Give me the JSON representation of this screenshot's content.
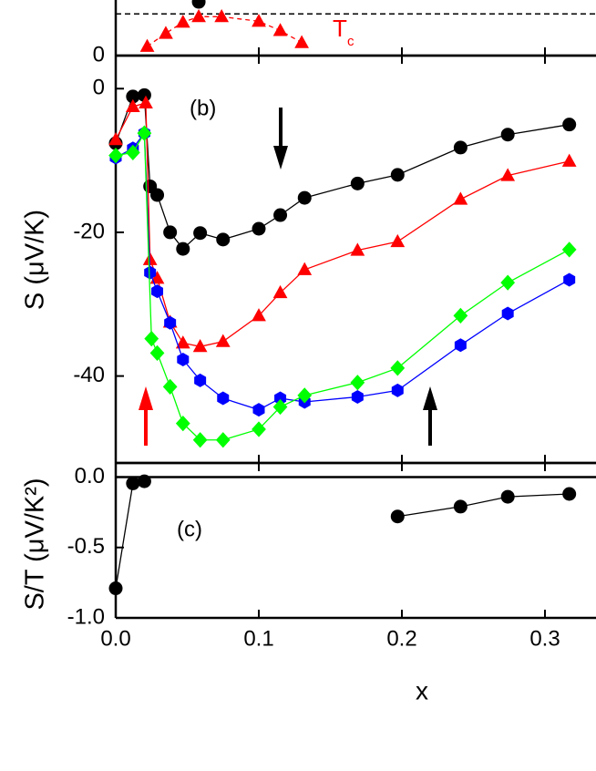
{
  "chart_data": [
    {
      "type": "line",
      "annotation": "T",
      "annotation_sub": "c",
      "xlim": [
        0,
        0.3357
      ],
      "ylim": [
        0,
        6
      ],
      "yticks": [
        0
      ],
      "reference_line": 4.5,
      "series": [
        {
          "color": "#ff0000",
          "marker": "triangle",
          "dashed": true,
          "x": [
            0.022,
            0.035,
            0.047,
            0.058,
            0.074,
            0.1,
            0.115,
            0.13
          ],
          "values": [
            1.0,
            2.4,
            3.6,
            4.2,
            4.2,
            3.7,
            2.7,
            1.4
          ]
        },
        {
          "color": "#000000",
          "marker": "circle",
          "x": [
            0.058
          ],
          "values": [
            5.8
          ]
        }
      ]
    },
    {
      "type": "line",
      "annotation": "(b)",
      "ylabel": "S (μV/K)",
      "xlim": [
        0,
        0.3357
      ],
      "ylim": [
        -52.1,
        4.6
      ],
      "yticks": [
        0,
        -20,
        -40
      ],
      "series": [
        {
          "color": "#000000",
          "marker": "circle",
          "x": [
            0,
            0.012,
            0.02,
            0.024,
            0.029,
            0.038,
            0.047,
            0.059,
            0.075,
            0.1,
            0.115,
            0.132,
            0.169,
            0.197,
            0.241,
            0.274,
            0.317
          ],
          "values": [
            -7.6,
            -1.1,
            -0.9,
            -13.6,
            -14.8,
            -20,
            -22.3,
            -20.1,
            -21,
            -19.5,
            -17.6,
            -15.2,
            -13.2,
            -12,
            -8.2,
            -6.4,
            -5
          ]
        },
        {
          "color": "#ff0000",
          "marker": "triangle",
          "x": [
            0,
            0.012,
            0.021,
            0.024,
            0.029,
            0.038,
            0.047,
            0.059,
            0.075,
            0.1,
            0.115,
            0.132,
            0.169,
            0.197,
            0.241,
            0.274,
            0.317
          ],
          "values": [
            -7.1,
            -2.5,
            -2,
            -23.8,
            -26.4,
            -32.5,
            -35.4,
            -35.9,
            -35.2,
            -31.6,
            -28.4,
            -25.2,
            -22.5,
            -21.3,
            -15.4,
            -12.1,
            -10.1
          ]
        },
        {
          "color": "#0000ff",
          "marker": "hexagon",
          "x": [
            0,
            0.012,
            0.02,
            0.024,
            0.029,
            0.038,
            0.047,
            0.059,
            0.075,
            0.1,
            0.115,
            0.132,
            0.169,
            0.197,
            0.241,
            0.274,
            0.317
          ],
          "values": [
            -9.6,
            -8.3,
            -6.2,
            -25.6,
            -28.2,
            -32.6,
            -37.7,
            -40.6,
            -43.1,
            -44.7,
            -43.1,
            -43.6,
            -42.9,
            -42,
            -35.7,
            -31.3,
            -26.6
          ]
        },
        {
          "color": "#00ff00",
          "marker": "diamond",
          "x": [
            0,
            0.012,
            0.02,
            0.025,
            0.029,
            0.038,
            0.047,
            0.059,
            0.075,
            0.1,
            0.115,
            0.132,
            0.169,
            0.197,
            0.241,
            0.274,
            0.317
          ],
          "values": [
            -9.3,
            -8.9,
            -6.2,
            -34.8,
            -36.8,
            -41.5,
            -46.6,
            -48.9,
            -48.9,
            -47.4,
            -44.3,
            -42.7,
            -40.9,
            -38.9,
            -31.6,
            -27,
            -22.4
          ]
        }
      ]
    },
    {
      "type": "line",
      "annotation": "(c)",
      "ylabel": "S/T (μV/K²)",
      "xlabel": "x",
      "xlim": [
        0,
        0.3357
      ],
      "ylim": [
        -1,
        0.1
      ],
      "reference_line": 0,
      "yticks": [
        {
          "value": 0,
          "label": "0.0"
        },
        {
          "value": -0.5,
          "label": "-0.5"
        },
        {
          "value": -1,
          "label": "-1.0"
        }
      ],
      "xticks": [
        {
          "value": 0,
          "label": "0.0"
        },
        {
          "value": 0.1,
          "label": "0.1"
        },
        {
          "value": 0.2,
          "label": "0.2"
        },
        {
          "value": 0.3,
          "label": "0.3"
        }
      ],
      "series": [
        {
          "color": "#000000",
          "marker": "circle",
          "x": [
            0,
            0.012,
            0.02
          ],
          "values": [
            -0.79,
            -0.045,
            -0.03
          ]
        },
        {
          "color": "#000000",
          "marker": "circle",
          "x": [
            0.197,
            0.241,
            0.274,
            0.317
          ],
          "values": [
            -0.28,
            -0.21,
            -0.14,
            -0.12
          ]
        }
      ]
    }
  ]
}
